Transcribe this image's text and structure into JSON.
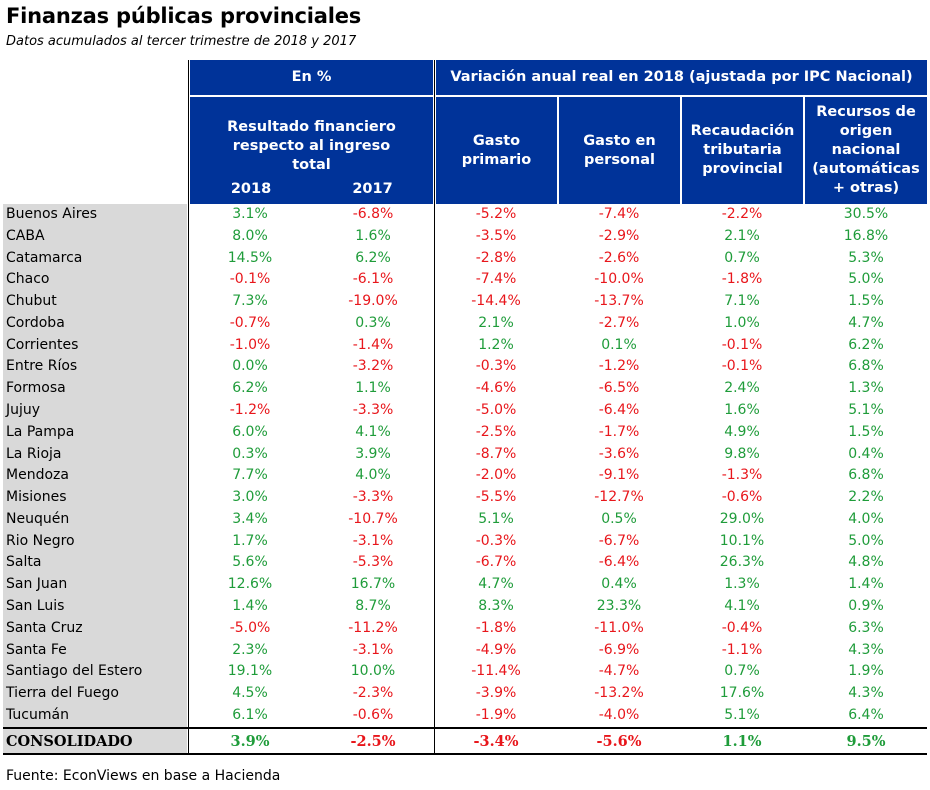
{
  "title": "Finanzas públicas provinciales",
  "subtitle": "Datos acumulados al tercer trimestre de 2018 y 2017",
  "headers": {
    "group1": "En %",
    "group2": "Variación anual real en 2018 (ajustada por IPC Nacional)",
    "resultado": "Resultado financiero respecto al ingreso total",
    "year2018": "2018",
    "year2017": "2017",
    "gasto_primario": "Gasto primario",
    "gasto_personal": "Gasto en personal",
    "recaudacion": "Recaudación tributaria provincial",
    "recursos": "Recursos de origen nacional (automáticas + otras)"
  },
  "rows": [
    {
      "name": "Buenos Aires",
      "values": [
        "3.1%",
        "-6.8%",
        "-5.2%",
        "-7.4%",
        "-2.2%",
        "30.5%"
      ]
    },
    {
      "name": "CABA",
      "values": [
        "8.0%",
        "1.6%",
        "-3.5%",
        "-2.9%",
        "2.1%",
        "16.8%"
      ]
    },
    {
      "name": "Catamarca",
      "values": [
        "14.5%",
        "6.2%",
        "-2.8%",
        "-2.6%",
        "0.7%",
        "5.3%"
      ]
    },
    {
      "name": "Chaco",
      "values": [
        "-0.1%",
        "-6.1%",
        "-7.4%",
        "-10.0%",
        "-1.8%",
        "5.0%"
      ]
    },
    {
      "name": "Chubut",
      "values": [
        "7.3%",
        "-19.0%",
        "-14.4%",
        "-13.7%",
        "7.1%",
        "1.5%"
      ]
    },
    {
      "name": "Cordoba",
      "values": [
        "-0.7%",
        "0.3%",
        "2.1%",
        "-2.7%",
        "1.0%",
        "4.7%"
      ]
    },
    {
      "name": "Corrientes",
      "values": [
        "-1.0%",
        "-1.4%",
        "1.2%",
        "0.1%",
        "-0.1%",
        "6.2%"
      ]
    },
    {
      "name": "Entre Ríos",
      "values": [
        "0.0%",
        "-3.2%",
        "-0.3%",
        "-1.2%",
        "-0.1%",
        "6.8%"
      ]
    },
    {
      "name": "Formosa",
      "values": [
        "6.2%",
        "1.1%",
        "-4.6%",
        "-6.5%",
        "2.4%",
        "1.3%"
      ]
    },
    {
      "name": "Jujuy",
      "values": [
        "-1.2%",
        "-3.3%",
        "-5.0%",
        "-6.4%",
        "1.6%",
        "5.1%"
      ]
    },
    {
      "name": "La Pampa",
      "values": [
        "6.0%",
        "4.1%",
        "-2.5%",
        "-1.7%",
        "4.9%",
        "1.5%"
      ]
    },
    {
      "name": "La Rioja",
      "values": [
        "0.3%",
        "3.9%",
        "-8.7%",
        "-3.6%",
        "9.8%",
        "0.4%"
      ]
    },
    {
      "name": "Mendoza",
      "values": [
        "7.7%",
        "4.0%",
        "-2.0%",
        "-9.1%",
        "-1.3%",
        "6.8%"
      ]
    },
    {
      "name": "Misiones",
      "values": [
        "3.0%",
        "-3.3%",
        "-5.5%",
        "-12.7%",
        "-0.6%",
        "2.2%"
      ]
    },
    {
      "name": "Neuquén",
      "values": [
        "3.4%",
        "-10.7%",
        "5.1%",
        "0.5%",
        "29.0%",
        "4.0%"
      ]
    },
    {
      "name": "Rio Negro",
      "values": [
        "1.7%",
        "-3.1%",
        "-0.3%",
        "-6.7%",
        "10.1%",
        "5.0%"
      ]
    },
    {
      "name": "Salta",
      "values": [
        "5.6%",
        "-5.3%",
        "-6.7%",
        "-6.4%",
        "26.3%",
        "4.8%"
      ]
    },
    {
      "name": "San Juan",
      "values": [
        "12.6%",
        "16.7%",
        "4.7%",
        "0.4%",
        "1.3%",
        "1.4%"
      ]
    },
    {
      "name": "San Luis",
      "values": [
        "1.4%",
        "8.7%",
        "8.3%",
        "23.3%",
        "4.1%",
        "0.9%"
      ]
    },
    {
      "name": "Santa Cruz",
      "values": [
        "-5.0%",
        "-11.2%",
        "-1.8%",
        "-11.0%",
        "-0.4%",
        "6.3%"
      ]
    },
    {
      "name": "Santa Fe",
      "values": [
        "2.3%",
        "-3.1%",
        "-4.9%",
        "-6.9%",
        "-1.1%",
        "4.3%"
      ]
    },
    {
      "name": "Santiago del Estero",
      "values": [
        "19.1%",
        "10.0%",
        "-11.4%",
        "-4.7%",
        "0.7%",
        "1.9%"
      ]
    },
    {
      "name": "Tierra del Fuego",
      "values": [
        "4.5%",
        "-2.3%",
        "-3.9%",
        "-13.2%",
        "17.6%",
        "4.3%"
      ]
    },
    {
      "name": "Tucumán",
      "values": [
        "6.1%",
        "-0.6%",
        "-1.9%",
        "-4.0%",
        "5.1%",
        "6.4%"
      ]
    }
  ],
  "consolidado": {
    "name": "CONSOLIDADO",
    "values": [
      "3.9%",
      "-2.5%",
      "-3.4%",
      "-5.6%",
      "1.1%",
      "9.5%"
    ]
  },
  "source": "Fuente: EconViews en base a Hacienda",
  "colors": {
    "header_bg": "#003399",
    "positive": "#1f9c3a",
    "negative": "#e8161b",
    "label_bg": "#d9d9d9"
  }
}
